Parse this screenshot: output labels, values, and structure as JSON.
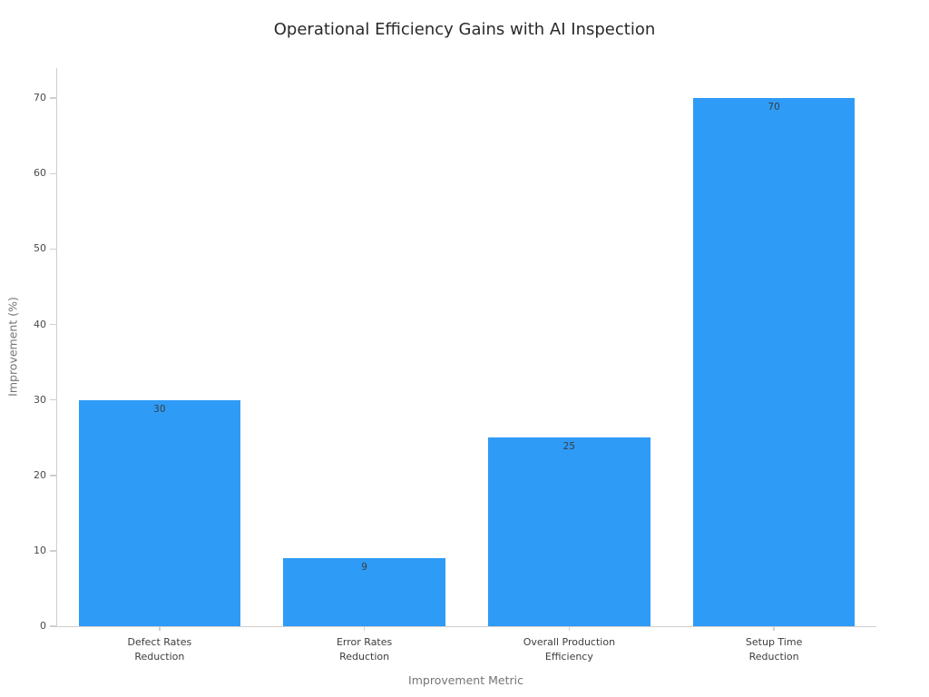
{
  "chart_data": {
    "type": "bar",
    "title": "Operational Efficiency Gains with AI Inspection",
    "xlabel": "Improvement Metric",
    "ylabel": "Improvement (%)",
    "categories": [
      "Defect Rates\nReduction",
      "Error Rates\nReduction",
      "Overall Production\nEfficiency",
      "Setup Time\nReduction"
    ],
    "values": [
      30,
      9,
      25,
      70
    ],
    "value_labels": [
      "30",
      "9",
      "25",
      "70"
    ],
    "yticks": [
      0,
      10,
      20,
      30,
      40,
      50,
      60,
      70
    ],
    "ylim": [
      0,
      74
    ],
    "grid": false,
    "legend": "none",
    "bar_color": "#2E9BF7",
    "axis_color": "#cfcfcf",
    "value_label_color": "#3d3d3d"
  }
}
